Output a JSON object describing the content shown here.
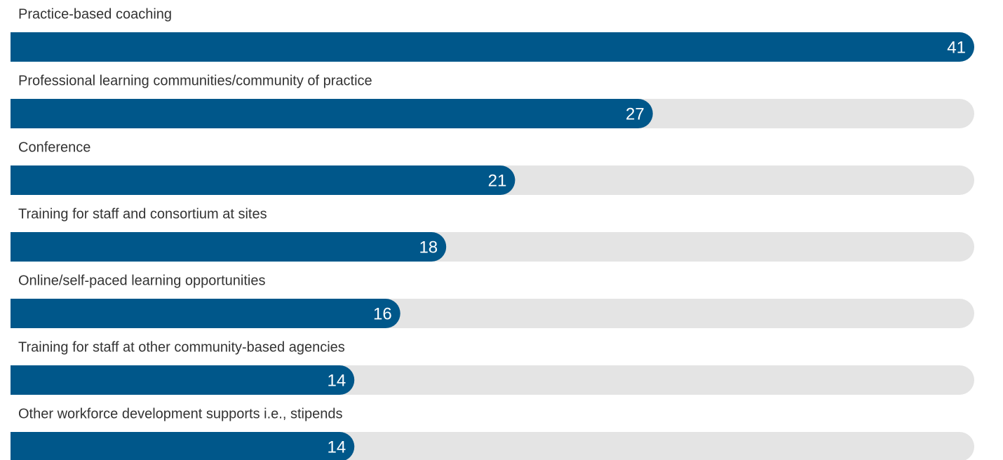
{
  "chart_data": {
    "type": "bar",
    "orientation": "horizontal",
    "categories": [
      "Practice-based coaching",
      "Professional learning communities/community of practice",
      "Conference",
      "Training for staff and consortium at sites",
      "Online/self-paced learning opportunities",
      "Training for staff at other community-based agencies",
      "Other workforce development supports i.e., stipends"
    ],
    "values": [
      41,
      27,
      21,
      18,
      16,
      14,
      14
    ],
    "color": "#00578a",
    "track_color": "#e4e4e4"
  }
}
